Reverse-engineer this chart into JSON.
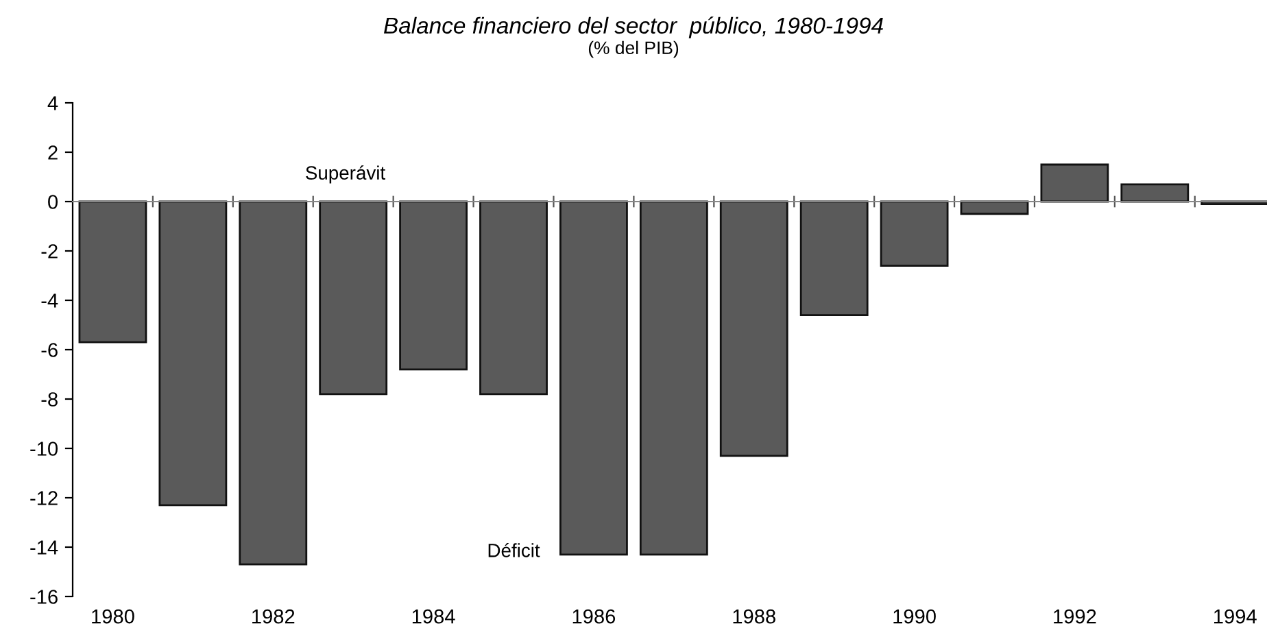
{
  "chart_data": {
    "type": "bar",
    "title": "Balance financiero del sector  público, 1980-1994",
    "subtitle": "(% del PIB)",
    "categories": [
      "1980",
      null,
      "1982",
      null,
      "1984",
      null,
      "1986",
      null,
      "1988",
      null,
      "1990",
      null,
      "1992",
      null,
      "1994"
    ],
    "values": [
      -5.7,
      -12.3,
      -14.7,
      -7.8,
      -6.8,
      -7.8,
      -14.3,
      -14.3,
      -10.3,
      -4.6,
      -2.6,
      -0.5,
      1.5,
      0.7,
      -0.1
    ],
    "color": "#5a5a5a",
    "ylim": [
      -16,
      4
    ],
    "yticks": [
      -16,
      -14,
      -12,
      -10,
      -8,
      -6,
      -4,
      -2,
      0,
      2,
      4
    ],
    "annotations": [
      "Superávit",
      "Déficit"
    ]
  }
}
